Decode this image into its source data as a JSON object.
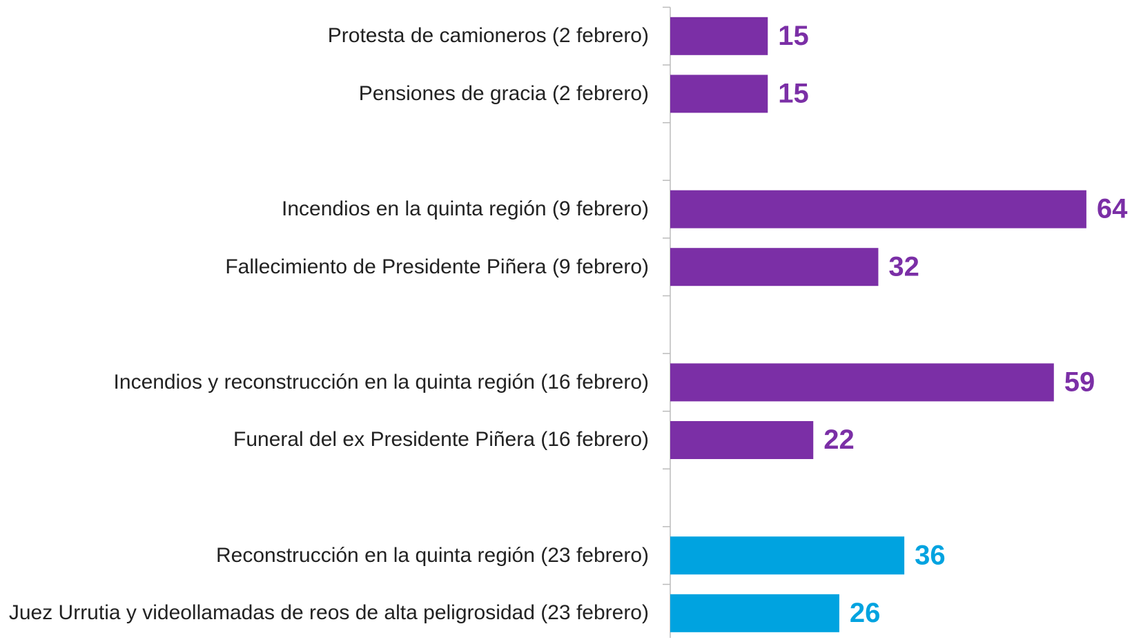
{
  "chart_data": {
    "type": "bar",
    "orientation": "horizontal",
    "categories": [
      "Protesta de camioneros (2 febrero)",
      "Pensiones de gracia (2 febrero)",
      null,
      "Incendios en la quinta región (9 febrero)",
      "Fallecimiento de Presidente Piñera (9 febrero)",
      null,
      "Incendios y reconstrucción en la quinta región (16 febrero)",
      "Funeral del ex Presidente Piñera (16 febrero)",
      null,
      "Reconstrucción en la quinta región (23 febrero)",
      "Juez Urrutia y videollamadas de reos de alta peligrosidad (23 febrero)"
    ],
    "values": [
      15,
      15,
      null,
      64,
      32,
      null,
      59,
      22,
      null,
      36,
      26
    ],
    "colors": [
      "#7b2fa6",
      "#7b2fa6",
      null,
      "#7b2fa6",
      "#7b2fa6",
      null,
      "#7b2fa6",
      "#7b2fa6",
      null,
      "#00a3e0",
      "#00a3e0"
    ],
    "xlim": [
      0,
      72.4
    ]
  }
}
